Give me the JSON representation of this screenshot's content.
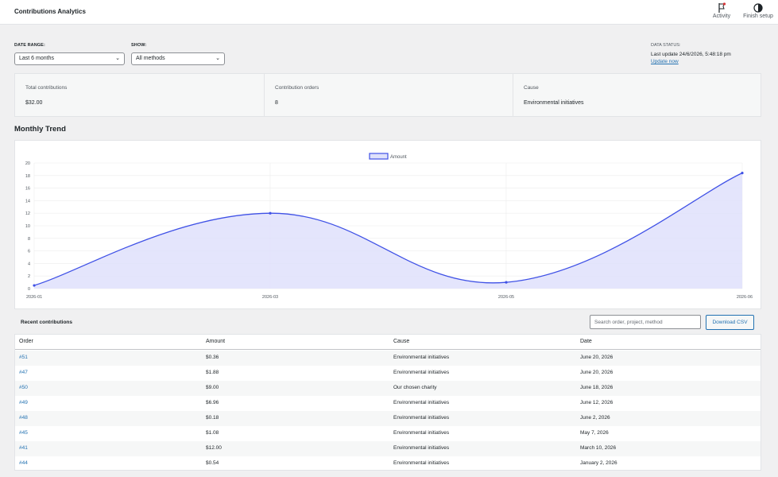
{
  "header": {
    "title": "Contributions Analytics",
    "activity_label": "Activity",
    "finish_setup_label": "Finish setup"
  },
  "filters": {
    "date_range_label": "DATE RANGE:",
    "date_range_value": "Last 6 months",
    "show_label": "SHOW:",
    "show_value": "All methods"
  },
  "data_status": {
    "label": "DATA STATUS:",
    "last_update": "Last update 24/6/2026, 5:48:18 pm",
    "update_link": "Update now"
  },
  "stats": [
    {
      "label": "Total contributions",
      "value": "$32.00"
    },
    {
      "label": "Contribution orders",
      "value": "8"
    },
    {
      "label": "Cause",
      "value": "Environmental initiatives"
    }
  ],
  "monthly_trend_title": "Monthly Trend",
  "chart_data": {
    "type": "area",
    "legend": [
      "Amount"
    ],
    "legend_position": "top-center",
    "x": [
      "2026-01",
      "2026-03",
      "2026-05",
      "2026-06"
    ],
    "series": [
      {
        "name": "Amount",
        "values": [
          0.5,
          12,
          1,
          18.4
        ]
      }
    ],
    "ylim": [
      0,
      20
    ],
    "yticks": [
      0,
      2,
      4,
      6,
      8,
      10,
      12,
      14,
      16,
      18,
      20
    ],
    "grid": true,
    "colors": {
      "line": "#3f51e6",
      "fill": "#dfe1fb"
    }
  },
  "recent": {
    "title": "Recent contributions",
    "search_placeholder": "Search order, project, method",
    "download_label": "Download CSV",
    "columns": [
      "Order",
      "Amount",
      "Cause",
      "Date"
    ],
    "rows": [
      [
        "#51",
        "$0.36",
        "Environmental initiatives",
        "June 20, 2026"
      ],
      [
        "#47",
        "$1.88",
        "Environmental initiatives",
        "June 20, 2026"
      ],
      [
        "#50",
        "$9.00",
        "Our chosen charity",
        "June 18, 2026"
      ],
      [
        "#49",
        "$6.96",
        "Environmental initiatives",
        "June 12, 2026"
      ],
      [
        "#48",
        "$0.18",
        "Environmental initiatives",
        "June 2, 2026"
      ],
      [
        "#45",
        "$1.08",
        "Environmental initiatives",
        "May 7, 2026"
      ],
      [
        "#41",
        "$12.00",
        "Environmental initiatives",
        "March 10, 2026"
      ],
      [
        "#44",
        "$0.54",
        "Environmental initiatives",
        "January 2, 2026"
      ]
    ]
  },
  "colors": {
    "accent": "#2271b1",
    "chart": "#3f51e6"
  }
}
